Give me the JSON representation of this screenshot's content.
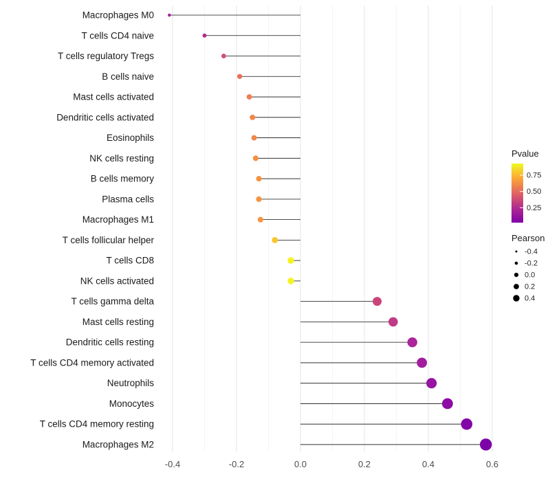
{
  "chart_data": {
    "type": "lollipop",
    "title": "",
    "xlabel": "",
    "ylabel": "",
    "xlim": [
      -0.44,
      0.64
    ],
    "grid": "on",
    "x_tick_values": [
      -0.4,
      -0.2,
      0.0,
      0.2,
      0.4,
      0.6
    ],
    "x_tick_labels": [
      "-0.4",
      "-0.2",
      "0.0",
      "0.2",
      "0.4",
      "0.6"
    ],
    "points": [
      {
        "label": "Macrophages M0",
        "pearson": -0.41,
        "pvalue": 0.2,
        "color": "#A8229B"
      },
      {
        "label": "T cells CD4 naive",
        "pearson": -0.3,
        "pvalue": 0.26,
        "color": "#B42E8D"
      },
      {
        "label": "T cells regulatory Tregs",
        "pearson": -0.24,
        "pvalue": 0.36,
        "color": "#D14E72"
      },
      {
        "label": "B cells naive",
        "pearson": -0.19,
        "pvalue": 0.46,
        "color": "#E9705A"
      },
      {
        "label": "Mast cells activated",
        "pearson": -0.16,
        "pvalue": 0.5,
        "color": "#F07F50"
      },
      {
        "label": "Dendritic cells activated",
        "pearson": -0.15,
        "pvalue": 0.52,
        "color": "#F28549"
      },
      {
        "label": "Eosinophils",
        "pearson": -0.145,
        "pvalue": 0.52,
        "color": "#F28749"
      },
      {
        "label": "NK cells resting",
        "pearson": -0.14,
        "pvalue": 0.55,
        "color": "#F58E44"
      },
      {
        "label": "B cells memory",
        "pearson": -0.13,
        "pvalue": 0.56,
        "color": "#F6923F"
      },
      {
        "label": "Plasma cells",
        "pearson": -0.13,
        "pvalue": 0.57,
        "color": "#F6943E"
      },
      {
        "label": "Macrophages M1",
        "pearson": -0.125,
        "pvalue": 0.57,
        "color": "#F6953D"
      },
      {
        "label": "T cells follicular helper",
        "pearson": -0.08,
        "pvalue": 0.74,
        "color": "#F9C52C"
      },
      {
        "label": "T cells CD8",
        "pearson": -0.03,
        "pvalue": 0.92,
        "color": "#F4F323"
      },
      {
        "label": "NK cells activated",
        "pearson": -0.03,
        "pvalue": 0.92,
        "color": "#F4F323"
      },
      {
        "label": "T cells gamma delta",
        "pearson": 0.24,
        "pvalue": 0.34,
        "color": "#CA447B"
      },
      {
        "label": "Mast cells resting",
        "pearson": 0.29,
        "pvalue": 0.29,
        "color": "#C03A85"
      },
      {
        "label": "Dendritic cells resting",
        "pearson": 0.35,
        "pvalue": 0.21,
        "color": "#AC2599"
      },
      {
        "label": "T cells CD4 memory activated",
        "pearson": 0.38,
        "pvalue": 0.17,
        "color": "#A21D9E"
      },
      {
        "label": "Neutrophils",
        "pearson": 0.41,
        "pvalue": 0.13,
        "color": "#9713A2"
      },
      {
        "label": "Monocytes",
        "pearson": 0.46,
        "pvalue": 0.09,
        "color": "#8C0BA5"
      },
      {
        "label": "T cells CD4 memory resting",
        "pearson": 0.52,
        "pvalue": 0.05,
        "color": "#8306A7"
      },
      {
        "label": "Macrophages M2",
        "pearson": 0.58,
        "pvalue": 0.02,
        "color": "#7C02A8"
      }
    ],
    "legend_pvalue": {
      "title": "Pvalue",
      "tick_values": [
        0.75,
        0.5,
        0.25
      ],
      "tick_labels": [
        "0.75",
        "0.50",
        "0.25"
      ],
      "range": [
        0.93,
        0.02
      ],
      "gradient": [
        "#F0F921",
        "#FCA636",
        "#E16462",
        "#B12A90",
        "#7E03A8"
      ]
    },
    "legend_pearson": {
      "title": "Pearson",
      "size_values": [
        -0.4,
        -0.2,
        0.0,
        0.2,
        0.4
      ],
      "size_labels": [
        "-0.4",
        "-0.2",
        "0.0",
        "0.2",
        "0.4"
      ],
      "dot_color": "#000000"
    },
    "style": {
      "stem_color": "#111111",
      "grid_major_color": "#E4E4E4",
      "grid_minor_color": "#F1F1F1",
      "axis_text_color": "#4D4D4D",
      "category_text_color": "#1A1A1A"
    }
  }
}
